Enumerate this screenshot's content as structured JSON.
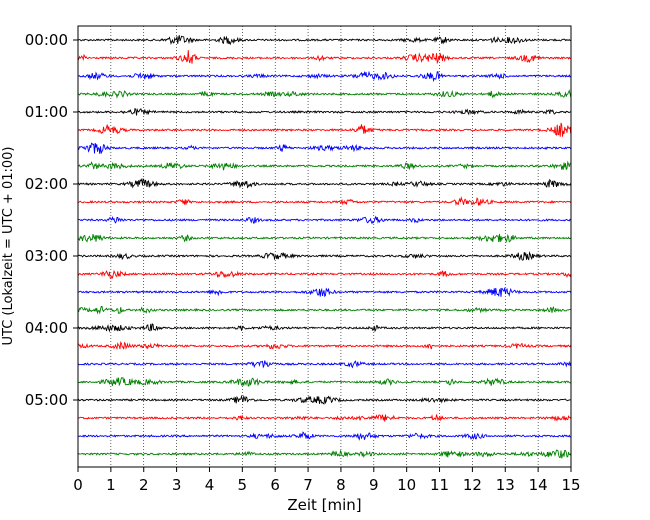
{
  "chart_data": {
    "type": "line",
    "title": "",
    "xlabel": "Zeit  [min]",
    "ylabel": "UTC (Lokalzeit = UTC + 01:00)",
    "xlim": [
      0,
      15
    ],
    "x_ticks": [
      0,
      1,
      2,
      3,
      4,
      5,
      6,
      7,
      8,
      9,
      10,
      11,
      12,
      13,
      14,
      15
    ],
    "y_tick_labels": [
      "00:00",
      "01:00",
      "02:00",
      "03:00",
      "04:00",
      "05:00"
    ],
    "y_tick_traces": [
      0,
      4,
      8,
      12,
      16,
      20
    ],
    "trace_count": 24,
    "trace_interval_min": 15,
    "color_cycle": [
      "#000000",
      "#ff0000",
      "#0000ff",
      "#008000"
    ],
    "grid": "vertical-dotted"
  }
}
